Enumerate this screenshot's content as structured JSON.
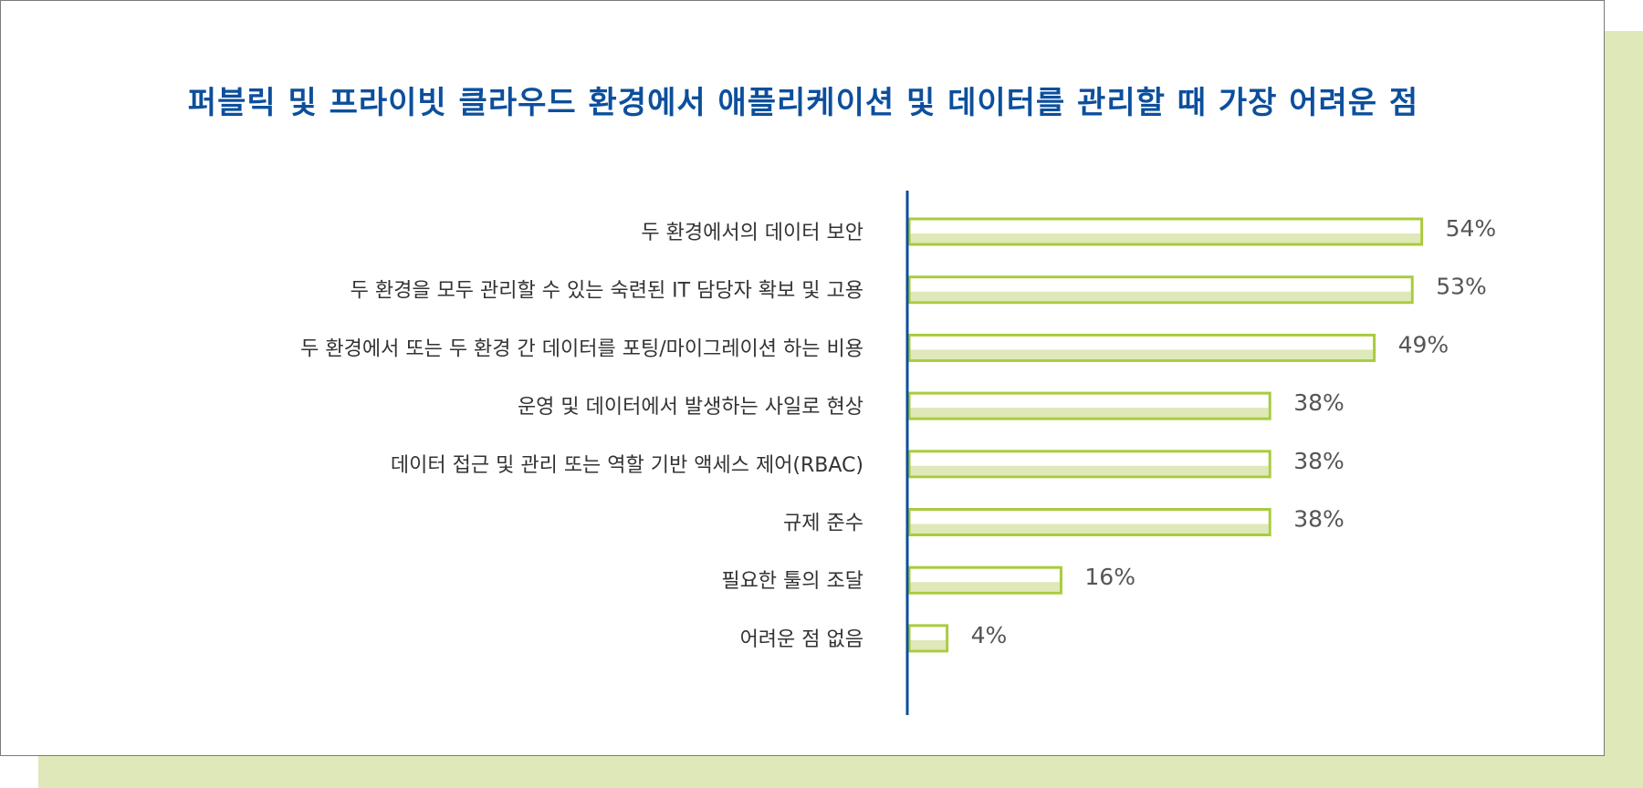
{
  "title": "퍼블릭 및 프라이빗 클라우드 환경에서 애플리케이션 및 데이터를 관리할 때 가장 어려운 점",
  "colors": {
    "title": "#0c4f9c",
    "axis": "#0c4f9c",
    "bar_outline": "#a8cc3c",
    "bar_shade": "#dfe8b8",
    "backdrop": "#dfe8b8",
    "card_border": "#7a7a7a"
  },
  "chart_data": {
    "type": "bar",
    "orientation": "horizontal",
    "title": "퍼블릭 및 프라이빗 클라우드 환경에서 애플리케이션 및 데이터를 관리할 때 가장 어려운 점",
    "categories": [
      "두 환경에서의 데이터 보안",
      "두 환경을 모두 관리할 수 있는 숙련된 IT 담당자 확보 및 고용",
      "두 환경에서 또는 두 환경 간 데이터를 포팅/마이그레이션 하는 비용",
      "운영 및 데이터에서 발생하는 사일로 현상",
      "데이터 접근 및 관리 또는 역할 기반 액세스 제어(RBAC)",
      "규제 준수",
      "필요한 툴의 조달",
      "어려운 점 없음"
    ],
    "values": [
      54,
      53,
      49,
      38,
      38,
      38,
      16,
      4
    ],
    "value_labels": [
      "54%",
      "53%",
      "49%",
      "38%",
      "38%",
      "38%",
      "16%",
      "4%"
    ],
    "unit": "%",
    "xlim": [
      0,
      60
    ],
    "grid": false,
    "legend": "none",
    "xlabel": "",
    "ylabel": ""
  }
}
